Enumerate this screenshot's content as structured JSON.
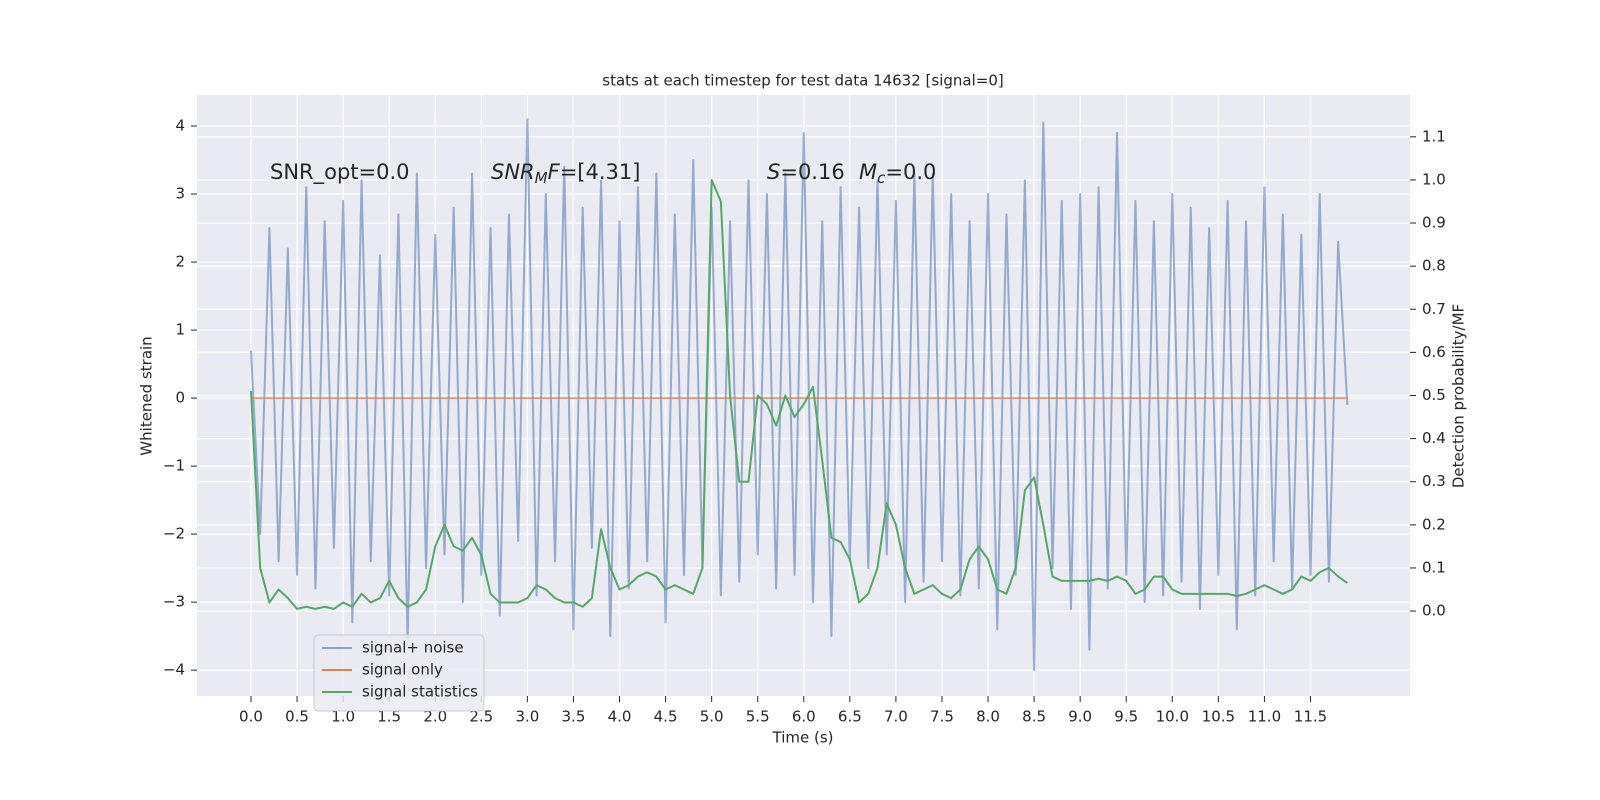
{
  "chart_data": {
    "type": "line",
    "title": "stats at each timestep for test data 14632 [signal=0]",
    "x_label": "Time (s)",
    "y_label": "Whitened strain",
    "y2_label": "Detection probability/MF",
    "xlim": [
      -0.586,
      12.58
    ],
    "ylim": [
      -4.38,
      4.456
    ],
    "y2lim": [
      -0.197,
      1.197
    ],
    "grid": true,
    "legend": "lower left",
    "xticks": [
      {
        "value": 0,
        "label": "0.0"
      },
      {
        "value": 0.5,
        "label": "0.5"
      },
      {
        "value": 1,
        "label": "1.0"
      },
      {
        "value": 1.5,
        "label": "1.5"
      },
      {
        "value": 2,
        "label": "2.0"
      },
      {
        "value": 2.5,
        "label": "2.5"
      },
      {
        "value": 3,
        "label": "3.0"
      },
      {
        "value": 3.5,
        "label": "3.5"
      },
      {
        "value": 4,
        "label": "4.0"
      },
      {
        "value": 4.5,
        "label": "4.5"
      },
      {
        "value": 5,
        "label": "5.0"
      },
      {
        "value": 5.5,
        "label": "5.5"
      },
      {
        "value": 6,
        "label": "6.0"
      },
      {
        "value": 6.5,
        "label": "6.5"
      },
      {
        "value": 7,
        "label": "7.0"
      },
      {
        "value": 7.5,
        "label": "7.5"
      },
      {
        "value": 8,
        "label": "8.0"
      },
      {
        "value": 8.5,
        "label": "8.5"
      },
      {
        "value": 9,
        "label": "9.0"
      },
      {
        "value": 9.5,
        "label": "9.5"
      },
      {
        "value": 10,
        "label": "10.0"
      },
      {
        "value": 10.5,
        "label": "10.5"
      },
      {
        "value": 11,
        "label": "11.0"
      },
      {
        "value": 11.5,
        "label": "11.5"
      }
    ],
    "yticks": [
      {
        "value": -4,
        "label": "−4"
      },
      {
        "value": -3,
        "label": "−3"
      },
      {
        "value": -2,
        "label": "−2"
      },
      {
        "value": -1,
        "label": "−1"
      },
      0,
      1,
      2,
      3,
      4
    ],
    "y2ticks": [
      {
        "value": 0,
        "label": "0.0"
      },
      {
        "value": 0.1,
        "label": "0.1"
      },
      {
        "value": 0.2,
        "label": "0.2"
      },
      {
        "value": 0.3,
        "label": "0.3"
      },
      {
        "value": 0.4,
        "label": "0.4"
      },
      {
        "value": 0.5,
        "label": "0.5"
      },
      {
        "value": 0.6,
        "label": "0.6"
      },
      {
        "value": 0.7,
        "label": "0.7"
      },
      {
        "value": 0.8,
        "label": "0.8"
      },
      {
        "value": 0.9,
        "label": "0.9"
      },
      {
        "value": 1,
        "label": "1.0"
      },
      {
        "value": 1.1,
        "label": "1.1"
      }
    ],
    "annotations": [
      {
        "parts": [
          {
            "text": "SNR_opt=0.0",
            "style": "normal"
          }
        ]
      },
      {
        "parts": [
          {
            "text": "SNR",
            "style": "italic"
          },
          {
            "text": "M",
            "style": "italic-sub"
          },
          {
            "text": "F",
            "style": "italic"
          },
          {
            "text": "=[4.31]",
            "style": "normal"
          }
        ]
      },
      {
        "parts": [
          {
            "text": "S",
            "style": "italic"
          },
          {
            "text": "=0.16",
            "style": "normal"
          }
        ]
      },
      {
        "parts": [
          {
            "text": "M",
            "style": "italic"
          },
          {
            "text": "c",
            "style": "italic-sub"
          },
          {
            "text": "=0.0",
            "style": "normal"
          }
        ]
      }
    ],
    "x": [
      0,
      0.1,
      0.2,
      0.3,
      0.4,
      0.5,
      0.6,
      0.7,
      0.8,
      0.9,
      1,
      1.1,
      1.2,
      1.3,
      1.4,
      1.5,
      1.6,
      1.7,
      1.8,
      1.9,
      2,
      2.1,
      2.2,
      2.3,
      2.4,
      2.5,
      2.6,
      2.7,
      2.8,
      2.9,
      3,
      3.1,
      3.2,
      3.3,
      3.4,
      3.5,
      3.6,
      3.7,
      3.8,
      3.9,
      4,
      4.1,
      4.2,
      4.3,
      4.4,
      4.5,
      4.6,
      4.7,
      4.8,
      4.9,
      5,
      5.1,
      5.2,
      5.3,
      5.4,
      5.5,
      5.6,
      5.7,
      5.8,
      5.9,
      6,
      6.1,
      6.2,
      6.3,
      6.4,
      6.5,
      6.6,
      6.7,
      6.8,
      6.9,
      7,
      7.1,
      7.2,
      7.3,
      7.4,
      7.5,
      7.6,
      7.7,
      7.8,
      7.9,
      8,
      8.1,
      8.2,
      8.3,
      8.4,
      8.5,
      8.6,
      8.7,
      8.8,
      8.9,
      9,
      9.1,
      9.2,
      9.3,
      9.4,
      9.5,
      9.6,
      9.7,
      9.8,
      9.9,
      10,
      10.1,
      10.2,
      10.3,
      10.4,
      10.5,
      10.6,
      10.7,
      10.8,
      10.9,
      11,
      11.1,
      11.2,
      11.3,
      11.4,
      11.5,
      11.6,
      11.7,
      11.8,
      11.9
    ],
    "series": [
      {
        "name": "signal+ noise",
        "color": "#4c72b0",
        "axis": "y",
        "values": [
          0.7,
          -2.0,
          2.5,
          -2.4,
          2.2,
          -2.6,
          3.1,
          -2.8,
          2.6,
          -2.2,
          2.9,
          -3.3,
          3.2,
          -2.4,
          2.1,
          -2.9,
          2.7,
          -3.6,
          3.3,
          -2.5,
          2.4,
          -2.3,
          2.8,
          -3.0,
          3.3,
          -2.6,
          2.5,
          -3.2,
          2.7,
          -2.1,
          4.1,
          -2.9,
          3.0,
          -2.4,
          3.4,
          -3.4,
          2.8,
          -2.2,
          3.2,
          -3.5,
          2.6,
          -2.8,
          3.1,
          -2.4,
          3.3,
          -3.3,
          2.7,
          -2.6,
          3.5,
          -2.5,
          2.8,
          -2.9,
          2.6,
          -2.7,
          3.2,
          -2.3,
          3.0,
          -2.8,
          3.3,
          -2.6,
          3.9,
          -3.0,
          2.6,
          -3.5,
          3.1,
          -2.4,
          2.8,
          -2.5,
          3.2,
          -2.3,
          2.9,
          -3.0,
          3.3,
          -2.7,
          3.3,
          -2.4,
          3.0,
          -2.9,
          2.6,
          -2.8,
          3.0,
          -3.4,
          2.7,
          -2.6,
          3.2,
          -4.0,
          4.05,
          -2.5,
          2.9,
          -3.1,
          3.0,
          -3.7,
          3.1,
          -2.8,
          3.9,
          -2.6,
          2.9,
          -3.0,
          2.6,
          -2.9,
          3.0,
          -2.7,
          2.8,
          -3.1,
          2.5,
          -2.6,
          2.9,
          -3.4,
          2.6,
          -2.9,
          3.1,
          -2.4,
          2.7,
          -2.8,
          2.4,
          -2.6,
          3.0,
          -2.7,
          2.3,
          -0.1
        ]
      },
      {
        "name": "signal only",
        "color": "#dd8452",
        "axis": "y",
        "values": [
          0,
          0,
          0,
          0,
          0,
          0,
          0,
          0,
          0,
          0,
          0,
          0,
          0,
          0,
          0,
          0,
          0,
          0,
          0,
          0,
          0,
          0,
          0,
          0,
          0,
          0,
          0,
          0,
          0,
          0,
          0,
          0,
          0,
          0,
          0,
          0,
          0,
          0,
          0,
          0,
          0,
          0,
          0,
          0,
          0,
          0,
          0,
          0,
          0,
          0,
          0,
          0,
          0,
          0,
          0,
          0,
          0,
          0,
          0,
          0,
          0,
          0,
          0,
          0,
          0,
          0,
          0,
          0,
          0,
          0,
          0,
          0,
          0,
          0,
          0,
          0,
          0,
          0,
          0,
          0,
          0,
          0,
          0,
          0,
          0,
          0,
          0,
          0,
          0,
          0,
          0,
          0,
          0,
          0,
          0,
          0,
          0,
          0,
          0,
          0,
          0,
          0,
          0,
          0,
          0,
          0,
          0,
          0,
          0,
          0,
          0,
          0,
          0,
          0,
          0,
          0,
          0,
          0,
          0,
          0
        ]
      },
      {
        "name": "signal statistics",
        "color": "#55a868",
        "axis": "y2",
        "values": [
          0.51,
          0.1,
          0.02,
          0.05,
          0.03,
          0.005,
          0.01,
          0.005,
          0.01,
          0.005,
          0.02,
          0.01,
          0.04,
          0.02,
          0.03,
          0.07,
          0.03,
          0.01,
          0.02,
          0.05,
          0.15,
          0.2,
          0.15,
          0.14,
          0.17,
          0.13,
          0.04,
          0.02,
          0.02,
          0.02,
          0.03,
          0.06,
          0.05,
          0.03,
          0.02,
          0.02,
          0.01,
          0.03,
          0.19,
          0.1,
          0.05,
          0.06,
          0.08,
          0.09,
          0.08,
          0.05,
          0.06,
          0.05,
          0.04,
          0.1,
          1.0,
          0.95,
          0.5,
          0.3,
          0.3,
          0.5,
          0.48,
          0.43,
          0.5,
          0.45,
          0.48,
          0.52,
          0.35,
          0.17,
          0.16,
          0.12,
          0.02,
          0.04,
          0.1,
          0.25,
          0.2,
          0.1,
          0.04,
          0.05,
          0.06,
          0.04,
          0.03,
          0.05,
          0.12,
          0.15,
          0.12,
          0.05,
          0.04,
          0.1,
          0.28,
          0.31,
          0.2,
          0.08,
          0.07,
          0.07,
          0.07,
          0.07,
          0.075,
          0.07,
          0.08,
          0.07,
          0.04,
          0.05,
          0.08,
          0.08,
          0.05,
          0.04,
          0.04,
          0.04,
          0.04,
          0.04,
          0.04,
          0.035,
          0.04,
          0.05,
          0.06,
          0.05,
          0.04,
          0.05,
          0.08,
          0.07,
          0.09,
          0.1,
          0.08,
          0.065
        ]
      }
    ]
  }
}
